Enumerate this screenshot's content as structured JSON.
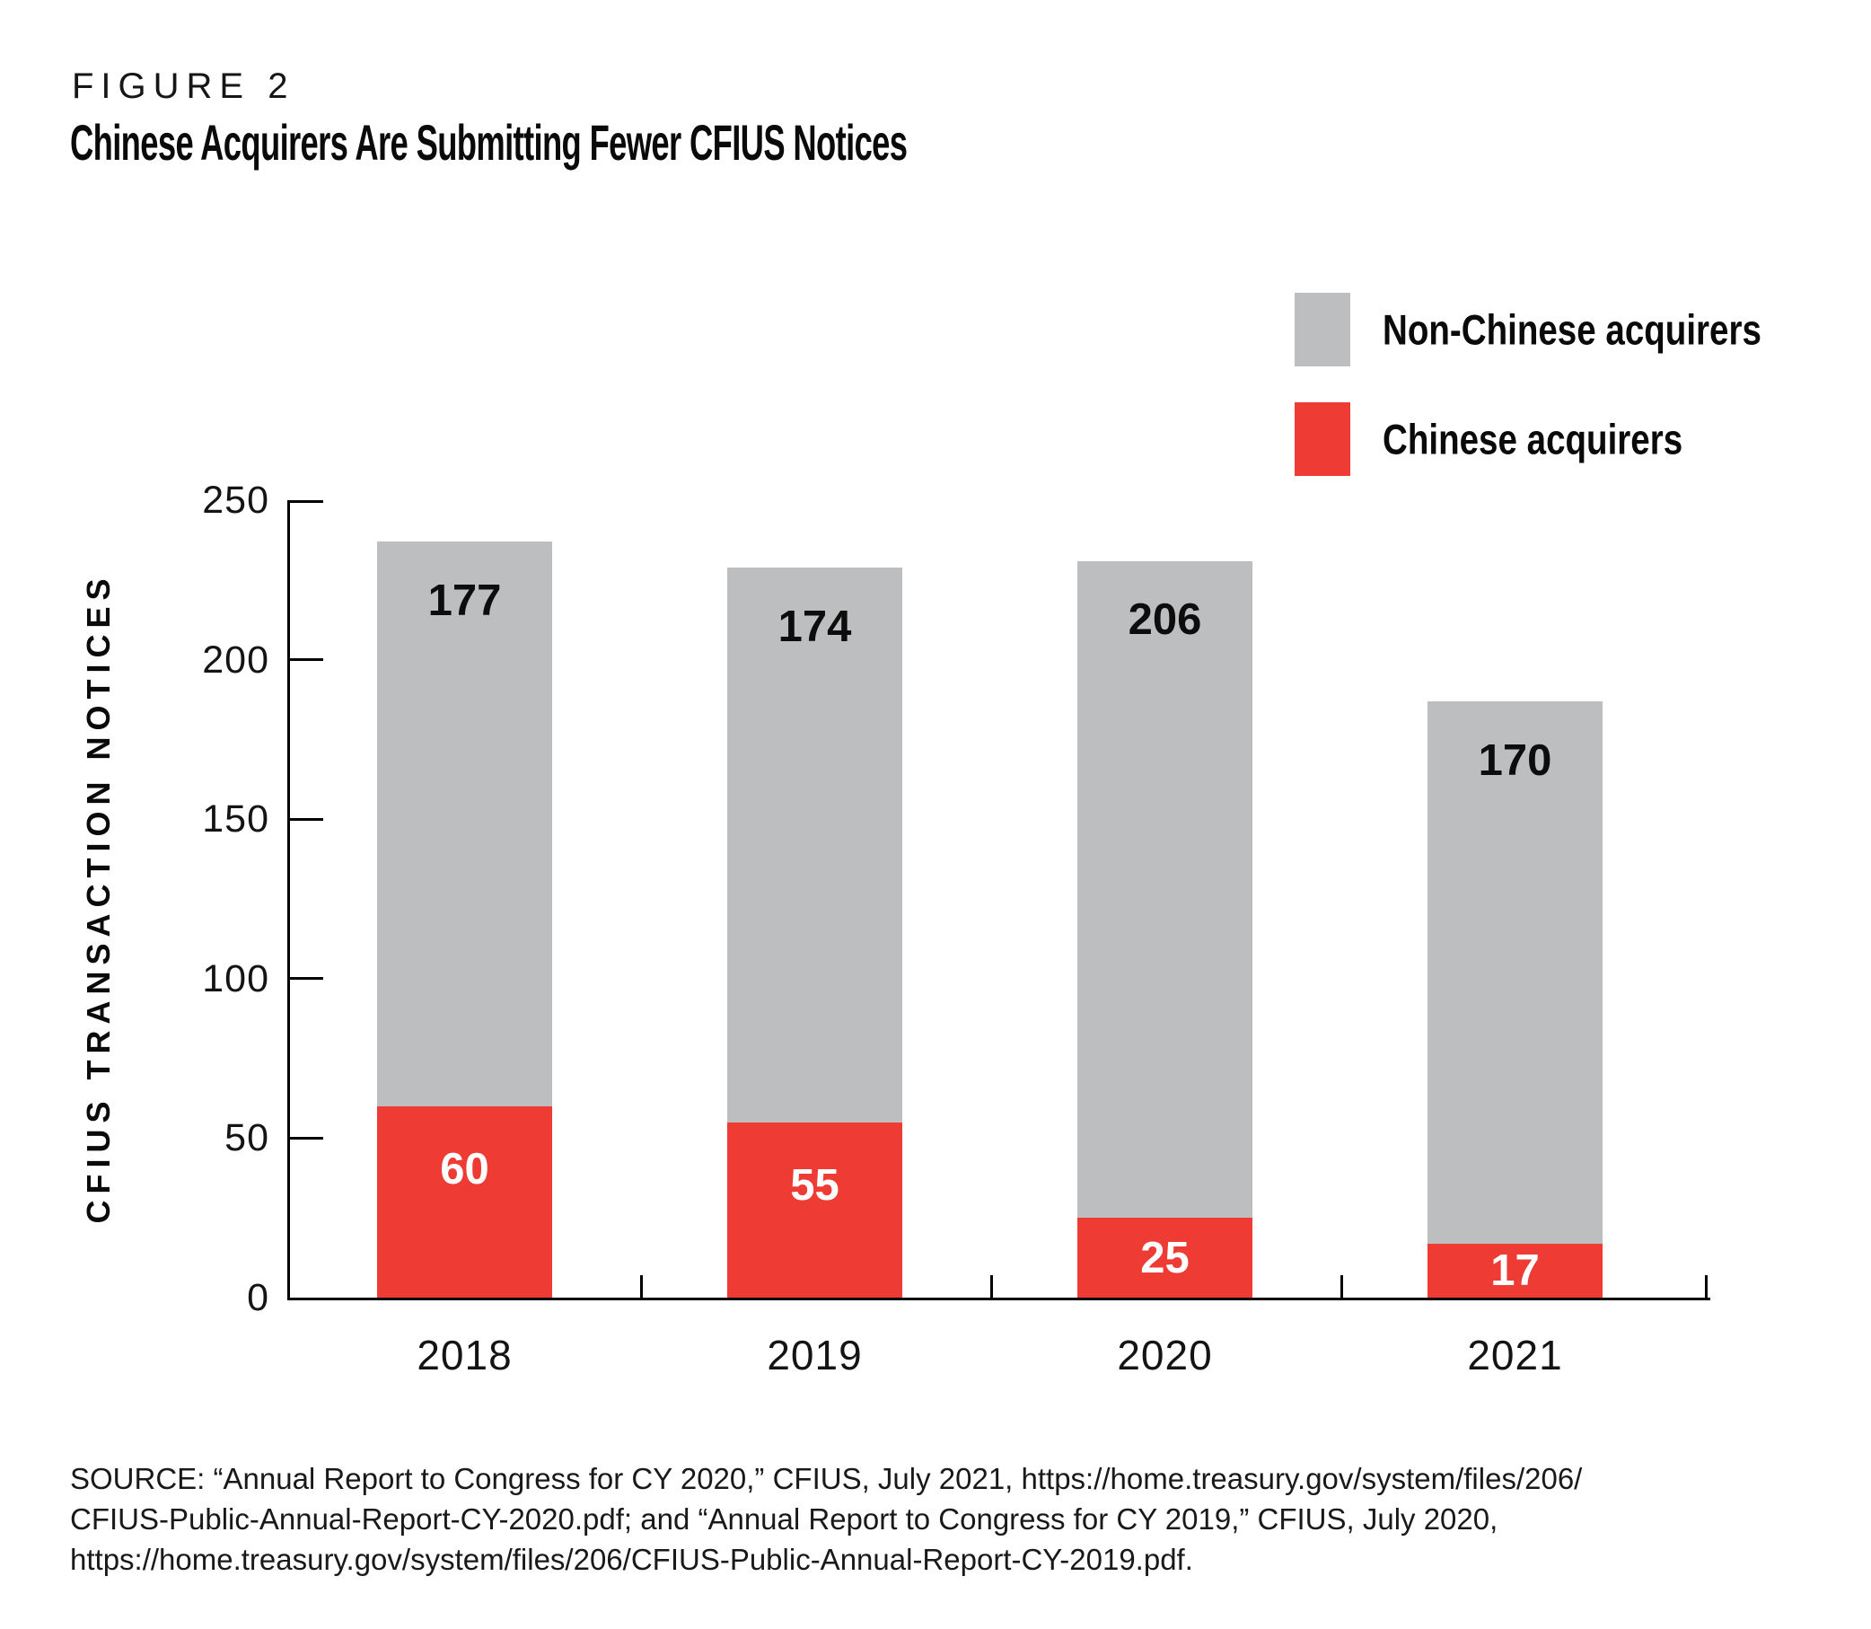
{
  "figure_label": "FIGURE 2",
  "title": "Chinese Acquirers Are Submitting Fewer CFIUS Notices",
  "colors": {
    "chinese": "#ee3b34",
    "non_chinese": "#bdbec0",
    "axis": "#000000"
  },
  "legend": [
    {
      "label": "Non-Chinese acquirers",
      "color": "#bdbec0"
    },
    {
      "label": "Chinese acquirers",
      "color": "#ee3b34"
    }
  ],
  "chart_data": {
    "type": "bar",
    "stacked": true,
    "title": "Chinese Acquirers Are Submitting Fewer CFIUS Notices",
    "categories": [
      "2018",
      "2019",
      "2020",
      "2021"
    ],
    "series": [
      {
        "name": "Chinese acquirers",
        "color": "#ee3b34",
        "values": [
          60,
          55,
          25,
          17
        ],
        "label_color": "#ffffff"
      },
      {
        "name": "Non-Chinese acquirers",
        "color": "#bdbec0",
        "values": [
          177,
          174,
          206,
          170
        ],
        "label_color": "#0d0d0d"
      }
    ],
    "totals": [
      237,
      229,
      231,
      187
    ],
    "xlabel": "",
    "ylabel": "CFIUS TRANSACTION NOTICES",
    "ylim": [
      0,
      250
    ],
    "yticks": [
      0,
      50,
      100,
      150,
      200,
      250
    ],
    "grid": false,
    "legend_position": "top-right"
  },
  "source": {
    "lines": [
      "SOURCE: “Annual Report to Congress for CY 2020,” CFIUS, July 2021, https://home.treasury.gov/system/files/206/",
      "CFIUS-Public-Annual-Report-CY-2020.pdf; and “Annual Report to Congress for CY 2019,” CFIUS, July 2020,",
      "https://home.treasury.gov/system/files/206/CFIUS-Public-Annual-Report-CY-2019.pdf."
    ]
  }
}
